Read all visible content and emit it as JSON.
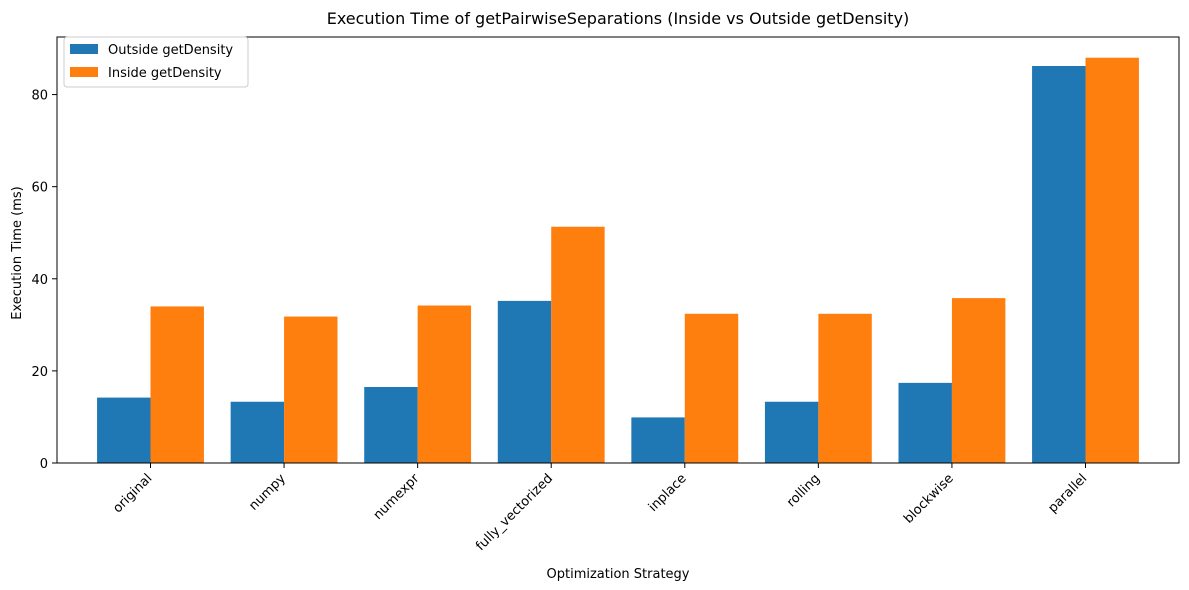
{
  "chart_data": {
    "type": "bar",
    "title": "Execution Time of getPairwiseSeparations (Inside vs Outside getDensity)",
    "xlabel": "Optimization Strategy",
    "ylabel": "Execution Time (ms)",
    "categories": [
      "original",
      "numpy",
      "numexpr",
      "fully_vectorized",
      "inplace",
      "rolling",
      "blockwise",
      "parallel"
    ],
    "series": [
      {
        "name": "Outside getDensity",
        "color": "#1f77b4",
        "values": [
          14.2,
          13.3,
          16.5,
          35.2,
          9.9,
          13.3,
          17.4,
          86.2
        ]
      },
      {
        "name": "Inside getDensity",
        "color": "#ff7f0e",
        "values": [
          34.0,
          31.8,
          34.2,
          51.3,
          32.4,
          32.4,
          35.8,
          88.0
        ]
      }
    ],
    "ylim": [
      0,
      92.5
    ],
    "yticks": [
      0,
      20,
      40,
      60,
      80
    ],
    "grid": false,
    "legend_position": "top-left"
  }
}
